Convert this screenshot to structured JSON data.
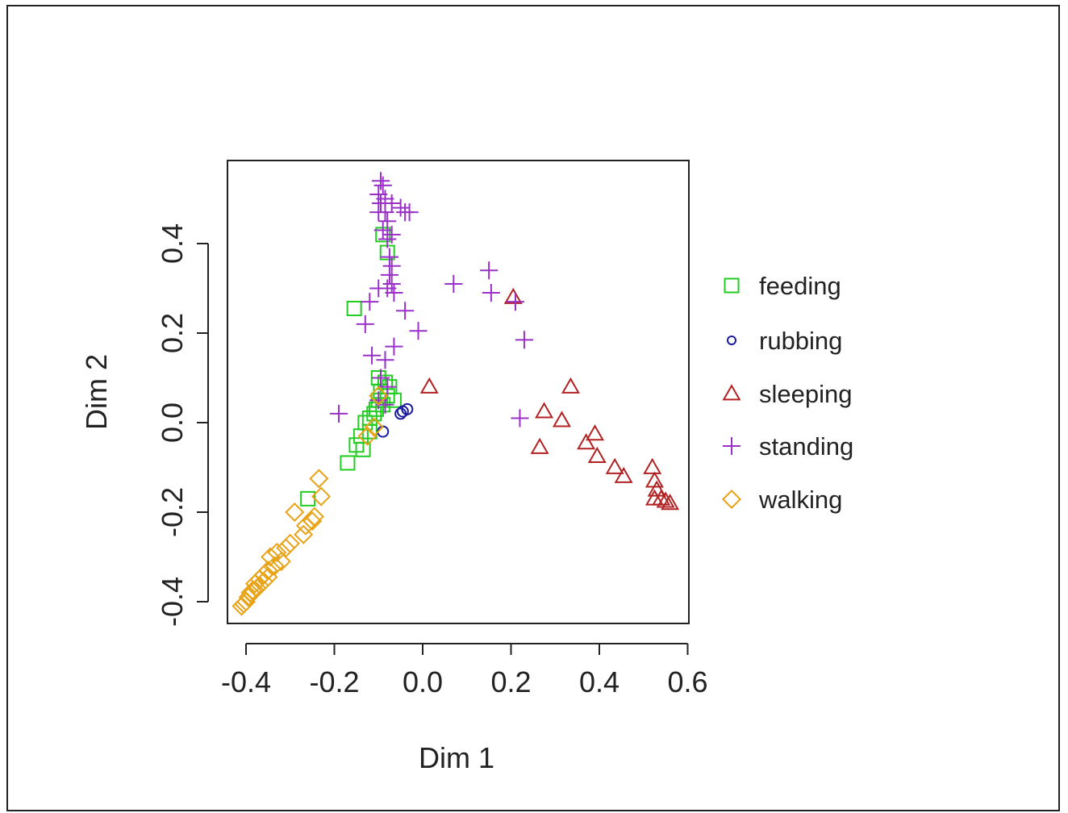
{
  "chart_data": {
    "type": "scatter",
    "title": "",
    "xlabel": "Dim 1",
    "ylabel": "Dim 2",
    "xlim": [
      -0.42,
      0.6
    ],
    "ylim": [
      -0.45,
      0.59
    ],
    "x_ticks": [
      -0.4,
      -0.2,
      0.0,
      0.2,
      0.4,
      0.6
    ],
    "y_ticks": [
      -0.4,
      -0.2,
      0.0,
      0.2,
      0.4
    ],
    "x_tick_labels": [
      "-0.4",
      "-0.2",
      "0.0",
      "0.2",
      "0.4",
      "0.6"
    ],
    "y_tick_labels": [
      "-0.4",
      "-0.2",
      "0.0",
      "0.2",
      "0.4"
    ],
    "grid": false,
    "legend_position": "right",
    "series": [
      {
        "name": "feeding",
        "color": "#22cc22",
        "marker": "square",
        "points": [
          [
            -0.155,
            0.255
          ],
          [
            -0.09,
            0.42
          ],
          [
            -0.08,
            0.38
          ],
          [
            -0.1,
            0.1
          ],
          [
            -0.085,
            0.09
          ],
          [
            -0.095,
            0.07
          ],
          [
            -0.075,
            0.08
          ],
          [
            -0.1,
            0.05
          ],
          [
            -0.08,
            0.06
          ],
          [
            -0.09,
            0.04
          ],
          [
            -0.065,
            0.05
          ],
          [
            -0.11,
            0.02
          ],
          [
            -0.12,
            0.01
          ],
          [
            -0.13,
            0.0
          ],
          [
            -0.105,
            0.03
          ],
          [
            -0.12,
            -0.02
          ],
          [
            -0.14,
            -0.03
          ],
          [
            -0.15,
            -0.05
          ],
          [
            -0.135,
            -0.06
          ],
          [
            -0.17,
            -0.09
          ],
          [
            -0.26,
            -0.17
          ]
        ]
      },
      {
        "name": "rubbing",
        "color": "#1a1aa0",
        "marker": "circle",
        "points": [
          [
            -0.035,
            0.03
          ],
          [
            -0.045,
            0.025
          ],
          [
            -0.05,
            0.02
          ],
          [
            -0.09,
            -0.02
          ]
        ]
      },
      {
        "name": "sleeping",
        "color": "#b22222",
        "marker": "triangle",
        "points": [
          [
            0.205,
            0.28
          ],
          [
            0.015,
            0.08
          ],
          [
            0.335,
            0.08
          ],
          [
            0.275,
            0.025
          ],
          [
            0.315,
            0.005
          ],
          [
            0.39,
            -0.025
          ],
          [
            0.37,
            -0.045
          ],
          [
            0.265,
            -0.055
          ],
          [
            0.395,
            -0.075
          ],
          [
            0.435,
            -0.1
          ],
          [
            0.455,
            -0.12
          ],
          [
            0.52,
            -0.1
          ],
          [
            0.525,
            -0.13
          ],
          [
            0.53,
            -0.15
          ],
          [
            0.525,
            -0.17
          ],
          [
            0.54,
            -0.17
          ],
          [
            0.55,
            -0.175
          ],
          [
            0.56,
            -0.18
          ]
        ]
      },
      {
        "name": "standing",
        "color": "#9a30c8",
        "marker": "plus",
        "points": [
          [
            -0.095,
            0.54
          ],
          [
            -0.09,
            0.53
          ],
          [
            -0.1,
            0.51
          ],
          [
            -0.085,
            0.5
          ],
          [
            -0.095,
            0.49
          ],
          [
            -0.07,
            0.49
          ],
          [
            -0.1,
            0.47
          ],
          [
            -0.085,
            0.47
          ],
          [
            -0.05,
            0.48
          ],
          [
            -0.04,
            0.47
          ],
          [
            -0.03,
            0.47
          ],
          [
            -0.08,
            0.45
          ],
          [
            -0.09,
            0.43
          ],
          [
            -0.07,
            0.42
          ],
          [
            -0.08,
            0.41
          ],
          [
            -0.075,
            0.37
          ],
          [
            -0.07,
            0.35
          ],
          [
            -0.075,
            0.33
          ],
          [
            -0.08,
            0.3
          ],
          [
            -0.065,
            0.29
          ],
          [
            -0.07,
            0.31
          ],
          [
            -0.1,
            0.3
          ],
          [
            -0.12,
            0.27
          ],
          [
            -0.04,
            0.25
          ],
          [
            -0.13,
            0.22
          ],
          [
            -0.01,
            0.205
          ],
          [
            -0.065,
            0.17
          ],
          [
            -0.115,
            0.15
          ],
          [
            -0.085,
            0.14
          ],
          [
            -0.095,
            0.1
          ],
          [
            -0.08,
            0.08
          ],
          [
            -0.1,
            0.05
          ],
          [
            -0.085,
            0.04
          ],
          [
            -0.19,
            0.02
          ],
          [
            0.07,
            0.31
          ],
          [
            0.15,
            0.34
          ],
          [
            0.155,
            0.29
          ],
          [
            0.21,
            0.27
          ],
          [
            0.23,
            0.185
          ],
          [
            0.22,
            0.01
          ]
        ]
      },
      {
        "name": "walking",
        "color": "#e8a317",
        "marker": "diamond",
        "points": [
          [
            -0.235,
            -0.125
          ],
          [
            -0.23,
            -0.165
          ],
          [
            -0.29,
            -0.2
          ],
          [
            -0.245,
            -0.21
          ],
          [
            -0.265,
            -0.23
          ],
          [
            -0.25,
            -0.22
          ],
          [
            -0.27,
            -0.25
          ],
          [
            -0.3,
            -0.27
          ],
          [
            -0.31,
            -0.28
          ],
          [
            -0.33,
            -0.29
          ],
          [
            -0.345,
            -0.3
          ],
          [
            -0.32,
            -0.31
          ],
          [
            -0.335,
            -0.32
          ],
          [
            -0.35,
            -0.33
          ],
          [
            -0.36,
            -0.34
          ],
          [
            -0.37,
            -0.35
          ],
          [
            -0.38,
            -0.36
          ],
          [
            -0.375,
            -0.37
          ],
          [
            -0.39,
            -0.38
          ],
          [
            -0.395,
            -0.39
          ],
          [
            -0.4,
            -0.4
          ],
          [
            -0.405,
            -0.405
          ],
          [
            -0.41,
            -0.41
          ],
          [
            -0.35,
            -0.345
          ],
          [
            -0.36,
            -0.355
          ],
          [
            -0.385,
            -0.375
          ],
          [
            -0.1,
            0.06
          ],
          [
            -0.11,
            -0.01
          ],
          [
            -0.125,
            -0.03
          ]
        ]
      }
    ]
  }
}
